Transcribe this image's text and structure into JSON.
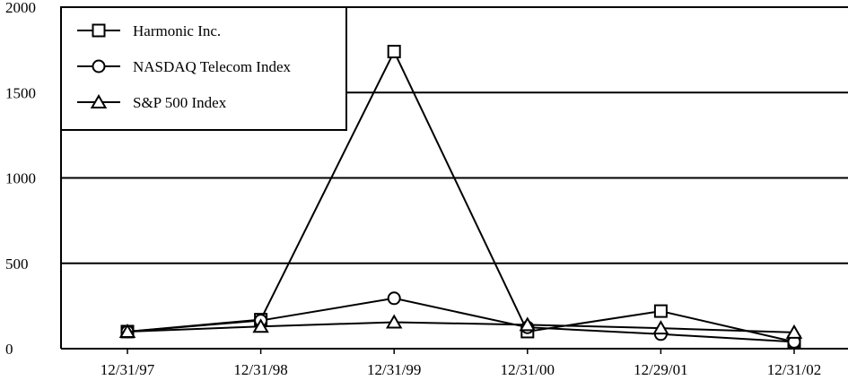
{
  "chart_data": {
    "type": "line",
    "title": "",
    "xlabel": "",
    "ylabel": "",
    "categories": [
      "12/31/97",
      "12/31/98",
      "12/31/99",
      "12/31/00",
      "12/29/01",
      "12/31/02"
    ],
    "ylim": [
      0,
      2000
    ],
    "yticks": [
      0,
      500,
      1000,
      1500,
      2000
    ],
    "grid": "horizontal",
    "legend_position": "top-left",
    "series": [
      {
        "name": "Harmonic Inc.",
        "marker": "square",
        "values": [
          100,
          170,
          1740,
          100,
          220,
          40
        ]
      },
      {
        "name": "NASDAQ Telecom Index",
        "marker": "circle",
        "values": [
          100,
          165,
          295,
          125,
          85,
          40
        ]
      },
      {
        "name": "S&P 500 Index",
        "marker": "triangle",
        "values": [
          100,
          130,
          155,
          140,
          120,
          95
        ]
      }
    ]
  }
}
